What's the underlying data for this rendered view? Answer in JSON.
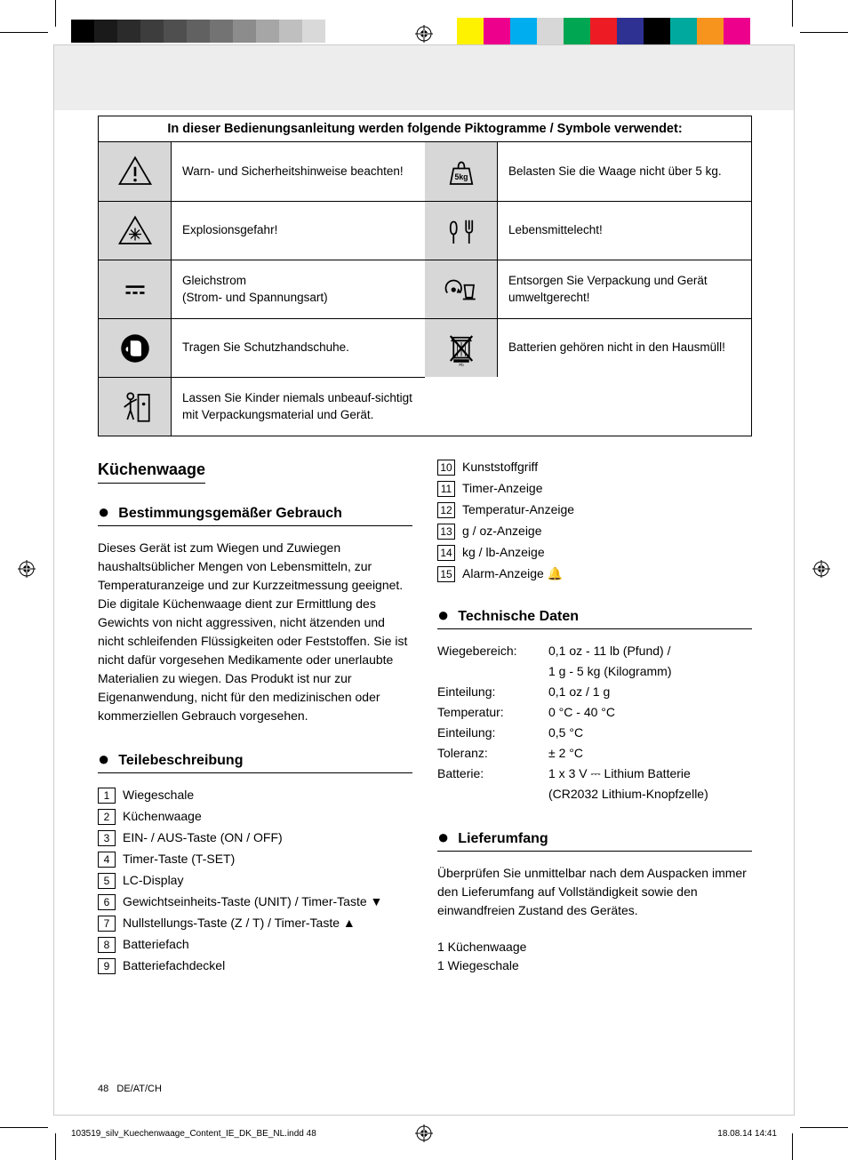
{
  "print": {
    "colorbar": [
      "#fff200",
      "#ec008c",
      "#00aeef",
      "#d7d7d7",
      "#00a651",
      "#ed1c24",
      "#2e3192",
      "#000000",
      "#00a99d",
      "#f7941e",
      "#ec008c",
      "#ffffff"
    ],
    "graybar": [
      "#000000",
      "#1a1a1a",
      "#2b2b2b",
      "#3d3d3d",
      "#4f4f4f",
      "#616161",
      "#737373",
      "#8c8c8c",
      "#a6a6a6",
      "#bfbfbf",
      "#d9d9d9",
      "#ffffff"
    ],
    "slug_file": "103519_silv_Kuechenwaage_Content_IE_DK_BE_NL.indd   48",
    "slug_date": "18.08.14   14:41"
  },
  "picto": {
    "header": "In dieser Bedienungsanleitung werden folgende Piktogramme / Symbole verwendet:",
    "rows": [
      {
        "l_icon": "warning",
        "l_text": "Warn- und Sicherheitshinweise beachten!",
        "r_icon": "weight5kg",
        "r_text": "Belasten Sie die Waage nicht über 5 kg."
      },
      {
        "l_icon": "explosion",
        "l_text": "Explosionsgefahr!",
        "r_icon": "foodsafe",
        "r_text": "Lebensmittelecht!"
      },
      {
        "l_icon": "dc",
        "l_text": "Gleichstrom\n(Strom- und Spannungsart)",
        "r_icon": "recycle",
        "r_text": "Entsorgen Sie Verpackung und Gerät umweltgerecht!"
      },
      {
        "l_icon": "gloves",
        "l_text": "Tragen Sie Schutzhandschuhe.",
        "r_icon": "weee",
        "r_text": "Batterien gehören nicht in den Hausmüll!"
      },
      {
        "l_icon": "child",
        "l_text": "Lassen Sie Kinder niemals unbeauf-sichtigt mit Verpackungsmaterial und Gerät."
      }
    ]
  },
  "left": {
    "title": "Küchenwaage",
    "sec1_title": "Bestimmungsgemäßer Gebrauch",
    "sec1_body": "Dieses Gerät ist zum Wiegen und Zuwiegen haushaltsüblicher Mengen von Lebensmitteln, zur Temperaturanzeige und zur Kurzzeitmessung geeignet. Die digitale Küchenwaage dient zur Ermittlung des Gewichts von nicht aggressiven, nicht ätzenden und nicht schleifenden Flüssigkeiten oder Feststoffen. Sie ist nicht dafür vorgesehen Medikamente oder unerlaubte Materialien zu wiegen. Das Produkt ist nur zur Eigenanwendung, nicht für den medizinischen oder kommerziellen Gebrauch vorgesehen.",
    "sec2_title": "Teilebeschreibung",
    "parts": [
      {
        "n": "1",
        "t": "Wiegeschale"
      },
      {
        "n": "2",
        "t": "Küchenwaage"
      },
      {
        "n": "3",
        "t": "EIN- / AUS-Taste (ON / OFF)"
      },
      {
        "n": "4",
        "t": "Timer-Taste (T-SET)"
      },
      {
        "n": "5",
        "t": "LC-Display"
      },
      {
        "n": "6",
        "t": "Gewichtseinheits-Taste (UNIT) / Timer-Taste ▼"
      },
      {
        "n": "7",
        "t": "Nullstellungs-Taste (Z / T) / Timer-Taste ▲"
      },
      {
        "n": "8",
        "t": "Batteriefach"
      },
      {
        "n": "9",
        "t": "Batteriefachdeckel"
      }
    ]
  },
  "right": {
    "parts_cont": [
      {
        "n": "10",
        "t": "Kunststoffgriff"
      },
      {
        "n": "11",
        "t": "Timer-Anzeige"
      },
      {
        "n": "12",
        "t": "Temperatur-Anzeige"
      },
      {
        "n": "13",
        "t": "g / oz-Anzeige"
      },
      {
        "n": "14",
        "t": "kg / lb-Anzeige"
      },
      {
        "n": "15",
        "t": "Alarm-Anzeige 🔔"
      }
    ],
    "sec3_title": "Technische Daten",
    "tech": [
      {
        "l": "Wiegebereich:",
        "v": "0,1 oz - 11 lb (Pfund) /"
      },
      {
        "l": "",
        "v": "1 g - 5 kg (Kilogramm)"
      },
      {
        "l": "Einteilung:",
        "v": "0,1 oz / 1 g"
      },
      {
        "l": "Temperatur:",
        "v": "0 °C - 40 °C"
      },
      {
        "l": "Einteilung:",
        "v": "0,5 °C"
      },
      {
        "l": "Toleranz:",
        "v": "± 2 °C"
      },
      {
        "l": "Batterie:",
        "v": "1 x 3 V ⎓ Lithium Batterie"
      },
      {
        "l": "",
        "v": "(CR2032 Lithium-Knopfzelle)"
      }
    ],
    "sec4_title": "Lieferumfang",
    "sec4_body": "Überprüfen Sie unmittelbar nach dem Auspacken immer den Lieferumfang auf Vollständigkeit sowie den einwandfreien Zustand des Gerätes.",
    "sec4_list1": "1 Küchenwaage",
    "sec4_list2": "1 Wiegeschale"
  },
  "footer": {
    "page": "48",
    "lang": "DE/AT/CH"
  }
}
